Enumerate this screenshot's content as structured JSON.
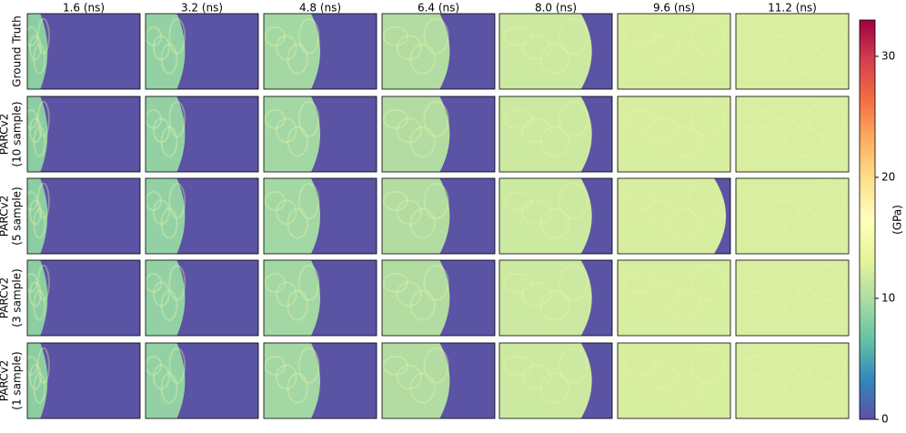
{
  "columns": [
    "1.6 (ns)",
    "3.2 (ns)",
    "4.8 (ns)",
    "6.4 (ns)",
    "8.0 (ns)",
    "9.6 (ns)",
    "11.2 (ns)"
  ],
  "rows": [
    [
      "Ground Truth"
    ],
    [
      "PARCv2",
      "(10 sample)"
    ],
    [
      "PARCv2",
      "(5 sample)"
    ],
    [
      "PARCv2",
      "(3 sample)"
    ],
    [
      "PARCv2",
      "(1 sample)"
    ]
  ],
  "colorbar": {
    "label": "(GPa)",
    "lim": [
      0,
      33
    ],
    "ticks": [
      0,
      10,
      20,
      30
    ]
  }
}
